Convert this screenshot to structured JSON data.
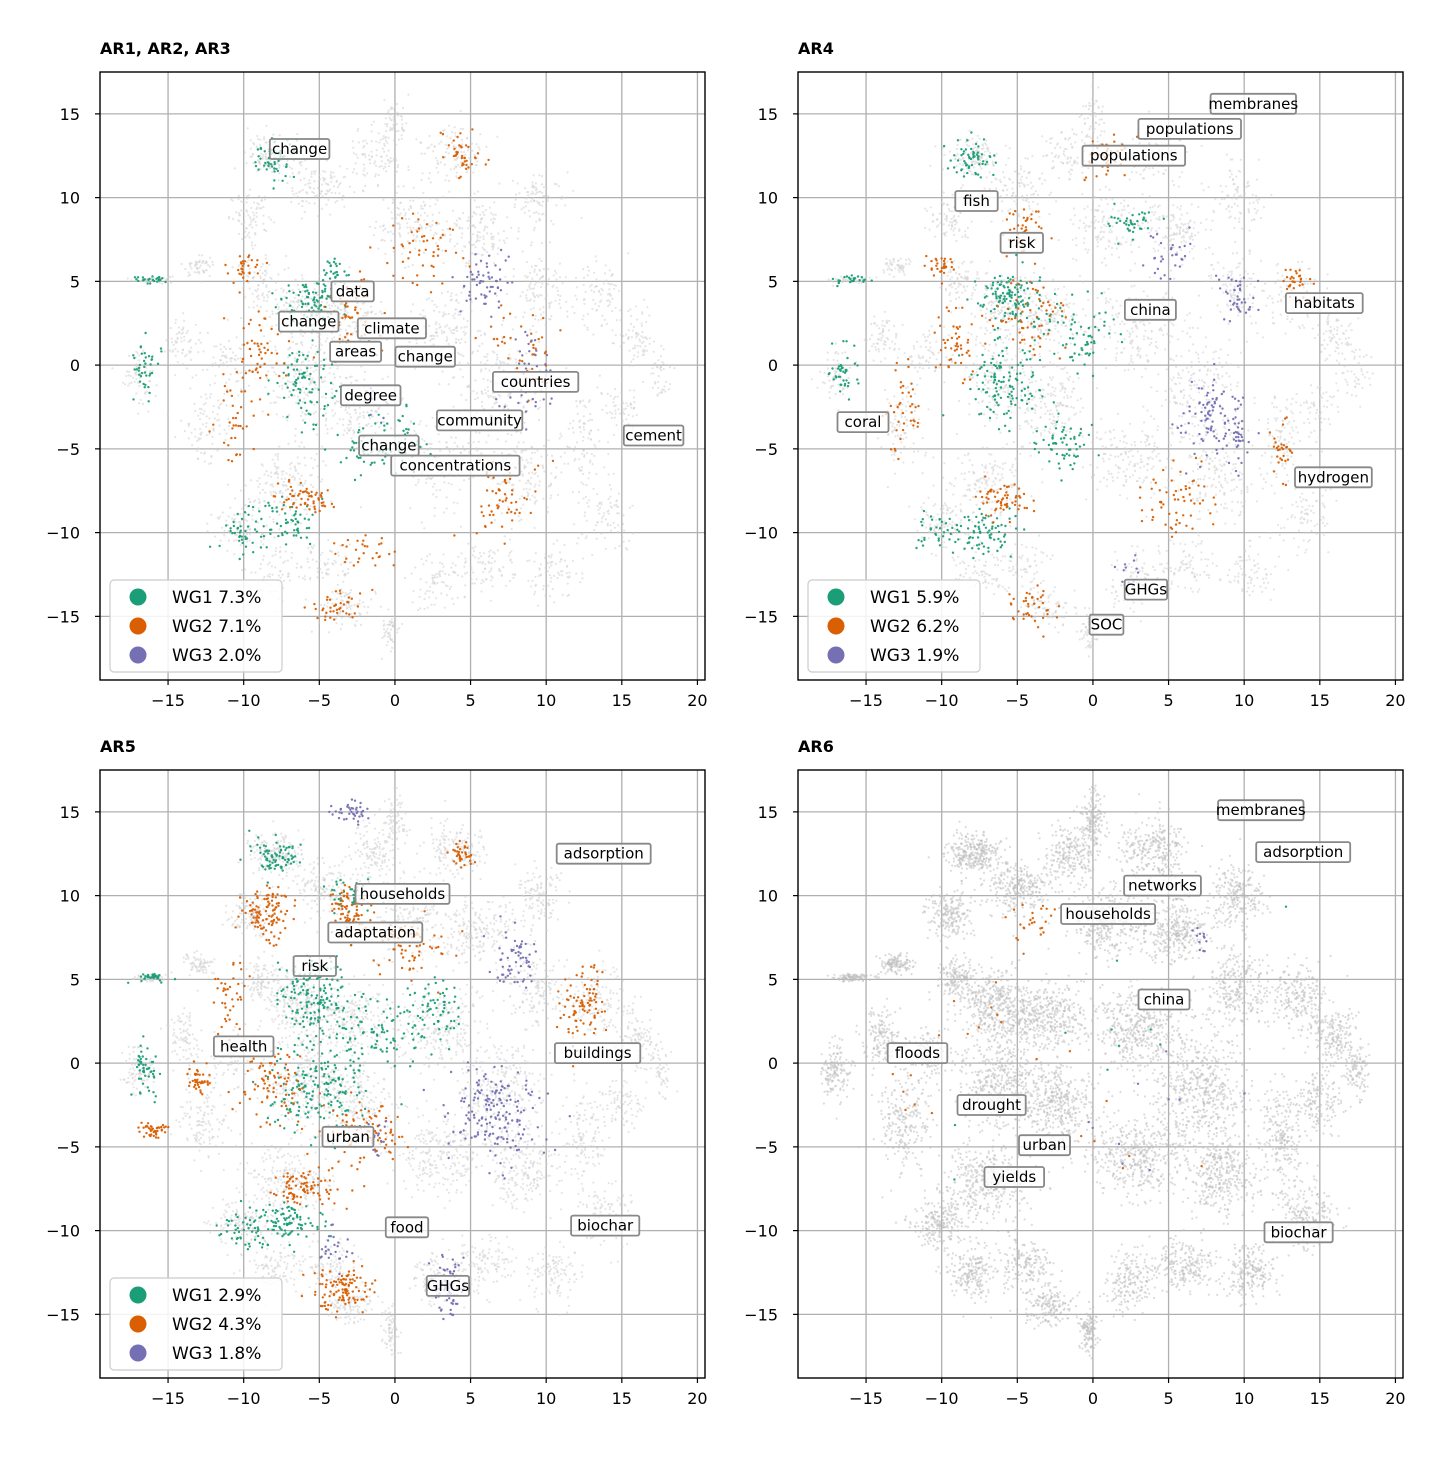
{
  "chart_data": [
    {
      "type": "scatter",
      "title": "AR1, AR2, AR3",
      "xlim": [
        -19.5,
        20.5
      ],
      "ylim": [
        -18.8,
        17.5
      ],
      "xticks": [
        -15,
        -10,
        -5,
        0,
        5,
        10,
        15,
        20
      ],
      "yticks": [
        15,
        10,
        5,
        0,
        -5,
        -10,
        -15
      ],
      "grid": true,
      "legend_position": "lower-left",
      "series": [
        {
          "name": "WG1 7.3%",
          "color": "#1b9e77"
        },
        {
          "name": "WG2 7.1%",
          "color": "#d95f02"
        },
        {
          "name": "WG3 2.0%",
          "color": "#7570b3"
        }
      ],
      "annotations": [
        {
          "text": "change",
          "x": -6.3,
          "y": 12.9
        },
        {
          "text": "data",
          "x": -2.8,
          "y": 4.4
        },
        {
          "text": "change",
          "x": -5.7,
          "y": 2.6
        },
        {
          "text": "climate",
          "x": -0.2,
          "y": 2.2
        },
        {
          "text": "areas",
          "x": -2.6,
          "y": 0.8
        },
        {
          "text": "change",
          "x": 2.0,
          "y": 0.5
        },
        {
          "text": "countries",
          "x": 9.3,
          "y": -1.0
        },
        {
          "text": "degree",
          "x": -1.6,
          "y": -1.8
        },
        {
          "text": "community",
          "x": 5.6,
          "y": -3.3
        },
        {
          "text": "cement",
          "x": 17.1,
          "y": -4.2
        },
        {
          "text": "change",
          "x": -0.4,
          "y": -4.8
        },
        {
          "text": "concentrations",
          "x": 4.0,
          "y": -6.0
        }
      ]
    },
    {
      "type": "scatter",
      "title": "AR4",
      "xlim": [
        -19.5,
        20.5
      ],
      "ylim": [
        -18.8,
        17.5
      ],
      "xticks": [
        -15,
        -10,
        -5,
        0,
        5,
        10,
        15,
        20
      ],
      "yticks": [
        15,
        10,
        5,
        0,
        -5,
        -10,
        -15
      ],
      "grid": true,
      "legend_position": "lower-left",
      "series": [
        {
          "name": "WG1 5.9%",
          "color": "#1b9e77"
        },
        {
          "name": "WG2 6.2%",
          "color": "#d95f02"
        },
        {
          "name": "WG3 1.9%",
          "color": "#7570b3"
        }
      ],
      "annotations": [
        {
          "text": "membranes",
          "x": 10.6,
          "y": 15.6
        },
        {
          "text": "populations",
          "x": 6.4,
          "y": 14.1
        },
        {
          "text": "populations",
          "x": 2.7,
          "y": 12.5
        },
        {
          "text": "fish",
          "x": -7.7,
          "y": 9.8
        },
        {
          "text": "risk",
          "x": -4.7,
          "y": 7.3
        },
        {
          "text": "habitats",
          "x": 15.3,
          "y": 3.7
        },
        {
          "text": "china",
          "x": 3.8,
          "y": 3.3
        },
        {
          "text": "coral",
          "x": -15.2,
          "y": -3.4
        },
        {
          "text": "hydrogen",
          "x": 15.9,
          "y": -6.7
        },
        {
          "text": "GHGs",
          "x": 3.5,
          "y": -13.4
        },
        {
          "text": "SOC",
          "x": 0.9,
          "y": -15.5
        }
      ]
    },
    {
      "type": "scatter",
      "title": "AR5",
      "xlim": [
        -19.5,
        20.5
      ],
      "ylim": [
        -18.8,
        17.5
      ],
      "xticks": [
        -15,
        -10,
        -5,
        0,
        5,
        10,
        15,
        20
      ],
      "yticks": [
        15,
        10,
        5,
        0,
        -5,
        -10,
        -15
      ],
      "grid": true,
      "legend_position": "lower-left",
      "series": [
        {
          "name": "WG1 2.9%",
          "color": "#1b9e77"
        },
        {
          "name": "WG2 4.3%",
          "color": "#d95f02"
        },
        {
          "name": "WG3 1.8%",
          "color": "#7570b3"
        }
      ],
      "annotations": [
        {
          "text": "adsorption",
          "x": 13.8,
          "y": 12.5
        },
        {
          "text": "households",
          "x": 0.5,
          "y": 10.1
        },
        {
          "text": "adaptation",
          "x": -1.3,
          "y": 7.8
        },
        {
          "text": "risk",
          "x": -5.3,
          "y": 5.8
        },
        {
          "text": "health",
          "x": -10.0,
          "y": 1.0
        },
        {
          "text": "buildings",
          "x": 13.4,
          "y": 0.6
        },
        {
          "text": "urban",
          "x": -3.1,
          "y": -4.4
        },
        {
          "text": "food",
          "x": 0.8,
          "y": -9.8
        },
        {
          "text": "biochar",
          "x": 13.9,
          "y": -9.7
        },
        {
          "text": "GHGs",
          "x": 3.5,
          "y": -13.3
        }
      ]
    },
    {
      "type": "scatter",
      "title": "AR6",
      "xlim": [
        -19.5,
        20.5
      ],
      "ylim": [
        -18.8,
        17.5
      ],
      "xticks": [
        -15,
        -10,
        -5,
        0,
        5,
        10,
        15,
        20
      ],
      "yticks": [
        15,
        10,
        5,
        0,
        -5,
        -10,
        -15
      ],
      "grid": true,
      "legend_position": "none",
      "series": [],
      "annotations": [
        {
          "text": "membranes",
          "x": 11.1,
          "y": 15.1
        },
        {
          "text": "adsorption",
          "x": 13.9,
          "y": 12.6
        },
        {
          "text": "networks",
          "x": 4.6,
          "y": 10.6
        },
        {
          "text": "households",
          "x": 1.0,
          "y": 8.9
        },
        {
          "text": "china",
          "x": 4.7,
          "y": 3.8
        },
        {
          "text": "floods",
          "x": -11.6,
          "y": 0.6
        },
        {
          "text": "drought",
          "x": -6.7,
          "y": -2.5
        },
        {
          "text": "urban",
          "x": -3.2,
          "y": -4.9
        },
        {
          "text": "yields",
          "x": -5.2,
          "y": -6.8
        },
        {
          "text": "biochar",
          "x": 13.6,
          "y": -10.1
        }
      ]
    }
  ],
  "colors": {
    "wg1": "#1b9e77",
    "wg2": "#d95f02",
    "wg3": "#7570b3",
    "background_points": "#cfcfcf",
    "grid": "#b0b0b0"
  }
}
